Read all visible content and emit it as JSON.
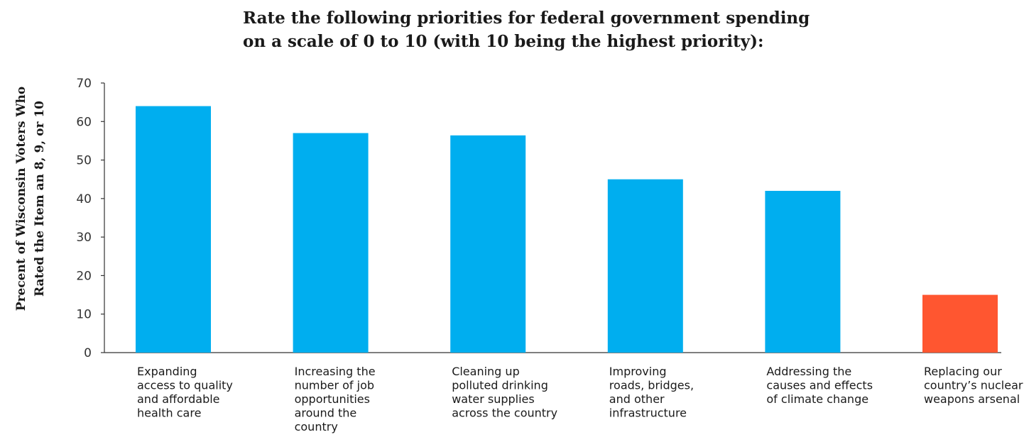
{
  "chart_data": {
    "type": "bar",
    "title_lines": [
      "Rate the following priorities for federal government spending",
      "on a scale of 0 to 10 (with 10 being the highest priority):"
    ],
    "ylabel_lines": [
      "Precent of Wisconsin Voters Who",
      "Rated the Item an 8, 9, or 10"
    ],
    "xlabel": "",
    "ylim": [
      0,
      70
    ],
    "yticks": [
      0,
      10,
      20,
      30,
      40,
      50,
      60,
      70
    ],
    "grid": false,
    "legend": "none",
    "categories": [
      [
        "Expanding",
        "access to quality",
        "and affordable",
        "health care"
      ],
      [
        "Increasing the",
        "number of job",
        "opportunities",
        "around the",
        "country"
      ],
      [
        "Cleaning up",
        "polluted drinking",
        "water supplies",
        "across the country"
      ],
      [
        "Improving",
        "roads, bridges,",
        "and other",
        "infrastructure"
      ],
      [
        "Addressing the",
        "causes and effects",
        "of climate change"
      ],
      [
        "Replacing our",
        "country’s nuclear",
        "weapons arsenal"
      ]
    ],
    "values": [
      64,
      57,
      56.4,
      45,
      42,
      15
    ],
    "colors": [
      "#00aeef",
      "#00aeef",
      "#00aeef",
      "#00aeef",
      "#00aeef",
      "#ff5630"
    ]
  }
}
